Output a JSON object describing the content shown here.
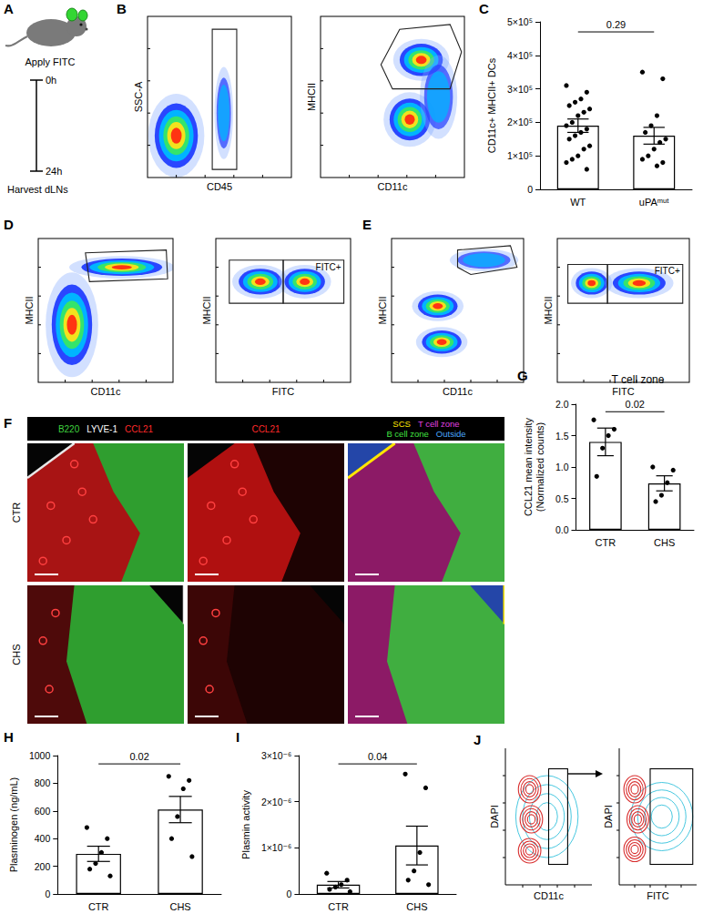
{
  "panels": {
    "A": {
      "letter": "A",
      "step_start": "Apply FITC",
      "time_start": "0h",
      "step_end": "Harvest dLNs",
      "time_end": "24h"
    },
    "B": {
      "letter": "B",
      "plots": [
        {
          "x_label": "CD45",
          "y_label": "SSC-A"
        },
        {
          "x_label": "CD11c",
          "y_label": "MHCII"
        }
      ]
    },
    "D": {
      "letter": "D",
      "plots": [
        {
          "x_label": "CD11c",
          "y_label": "MHCII"
        },
        {
          "x_label": "FITC",
          "y_label": "MHCII",
          "gate_label": "FITC+"
        }
      ]
    },
    "E": {
      "letter": "E",
      "plots": [
        {
          "x_label": "CD11c",
          "y_label": "MHCII"
        },
        {
          "x_label": "FITC",
          "y_label": "MHCII",
          "gate_label": "FITC+"
        }
      ]
    },
    "F": {
      "letter": "F",
      "header": [
        [
          {
            "text": "B220",
            "color": "#3fd23f"
          },
          {
            "text": "LYVE-1",
            "color": "#ffffff"
          },
          {
            "text": "CCL21",
            "color": "#ff2a2a"
          }
        ],
        [
          {
            "text": "CCL21",
            "color": "#ff2a2a"
          }
        ],
        [
          {
            "text": "SCS",
            "color": "#ffe600"
          },
          {
            "text": "T cell zone",
            "color": "#e040e0"
          },
          {
            "text": "B cell zone",
            "color": "#40e040"
          },
          {
            "text": "Outside",
            "color": "#4aa8ff"
          }
        ]
      ],
      "rows": [
        "CTR",
        "CHS"
      ]
    },
    "J": {
      "letter": "J",
      "plots": [
        {
          "x_label": "CD11c",
          "y_label": "DAPI"
        },
        {
          "x_label": "FITC",
          "y_label": "DAPI"
        }
      ]
    }
  },
  "chart_data": [
    {
      "letter": "C",
      "type": "bar",
      "categories": [
        "WT",
        "uPAᵐᵘᵗ"
      ],
      "values": [
        190000,
        160000
      ],
      "errors": [
        20000,
        25000
      ],
      "points": [
        [
          310000,
          290000,
          270000,
          260000,
          250000,
          240000,
          230000,
          220000,
          200000,
          190000,
          180000,
          170000,
          160000,
          150000,
          130000,
          120000,
          100000,
          90000,
          80000,
          60000
        ],
        [
          350000,
          330000,
          220000,
          190000,
          170000,
          150000,
          140000,
          120000,
          100000,
          90000,
          80000,
          70000
        ]
      ],
      "y_label": "CD11c+ MHCII+ DCs",
      "ylim": [
        0,
        500000
      ],
      "yticks": [
        0,
        {
          "value": 100000,
          "label": "1×10⁵"
        },
        {
          "value": 200000,
          "label": "2×10⁵"
        },
        {
          "value": 300000,
          "label": "3×10⁵"
        },
        {
          "value": 400000,
          "label": "4×10⁵"
        },
        {
          "value": 500000,
          "label": "5×10⁵"
        }
      ],
      "p_value": "0.29",
      "color": "#ffffff",
      "grid": false
    },
    {
      "letter": "G",
      "type": "bar",
      "title": "T cell zone",
      "categories": [
        "CTR",
        "CHS"
      ],
      "values": [
        1.4,
        0.74
      ],
      "errors": [
        0.22,
        0.12
      ],
      "points": [
        [
          1.75,
          1.6,
          1.5,
          1.3,
          0.85
        ],
        [
          1.0,
          0.95,
          0.75,
          0.55,
          0.45
        ]
      ],
      "y_label": "CCL21 mean intensity\n(Normalized counts)",
      "ylim": [
        0,
        2
      ],
      "yticks": [
        {
          "value": 0,
          "label": "0.0"
        },
        0.5,
        {
          "value": 1,
          "label": "1.0"
        },
        1.5,
        {
          "value": 2,
          "label": "2.0"
        }
      ],
      "p_value": "0.02",
      "color": "#ffffff",
      "grid": false
    },
    {
      "letter": "H",
      "type": "bar",
      "categories": [
        "CTR",
        "CHS"
      ],
      "values": [
        290,
        610
      ],
      "errors": [
        55,
        95
      ],
      "points": [
        [
          480,
          400,
          300,
          220,
          180,
          130
        ],
        [
          850,
          820,
          760,
          560,
          400,
          270
        ]
      ],
      "y_label": "Plasminogen (ng/mL)",
      "ylim": [
        0,
        1000
      ],
      "yticks": [
        0,
        200,
        400,
        600,
        800,
        1000
      ],
      "p_value": "0.02",
      "color": "#ffffff",
      "grid": false
    },
    {
      "letter": "I",
      "type": "bar",
      "categories": [
        "CTR",
        "CHS"
      ],
      "values": [
        2e-07,
        1.05e-06
      ],
      "errors": [
        7e-08,
        4.2e-07
      ],
      "points": [
        [
          4.5e-07,
          3e-07,
          2e-07,
          1.5e-07,
          1e-07,
          5e-08
        ],
        [
          2.6e-06,
          2.3e-06,
          9e-07,
          5e-07,
          3e-07,
          2e-07
        ]
      ],
      "y_label": "Plasmin activity",
      "ylim": [
        0,
        3e-06
      ],
      "yticks": [
        0,
        {
          "value": 1e-06,
          "label": "1×10⁻⁶"
        },
        {
          "value": 2e-06,
          "label": "2×10⁻⁶"
        },
        {
          "value": 3e-06,
          "label": "3×10⁻⁶"
        }
      ],
      "p_value": "0.04",
      "color": "#ffffff",
      "grid": false
    }
  ]
}
